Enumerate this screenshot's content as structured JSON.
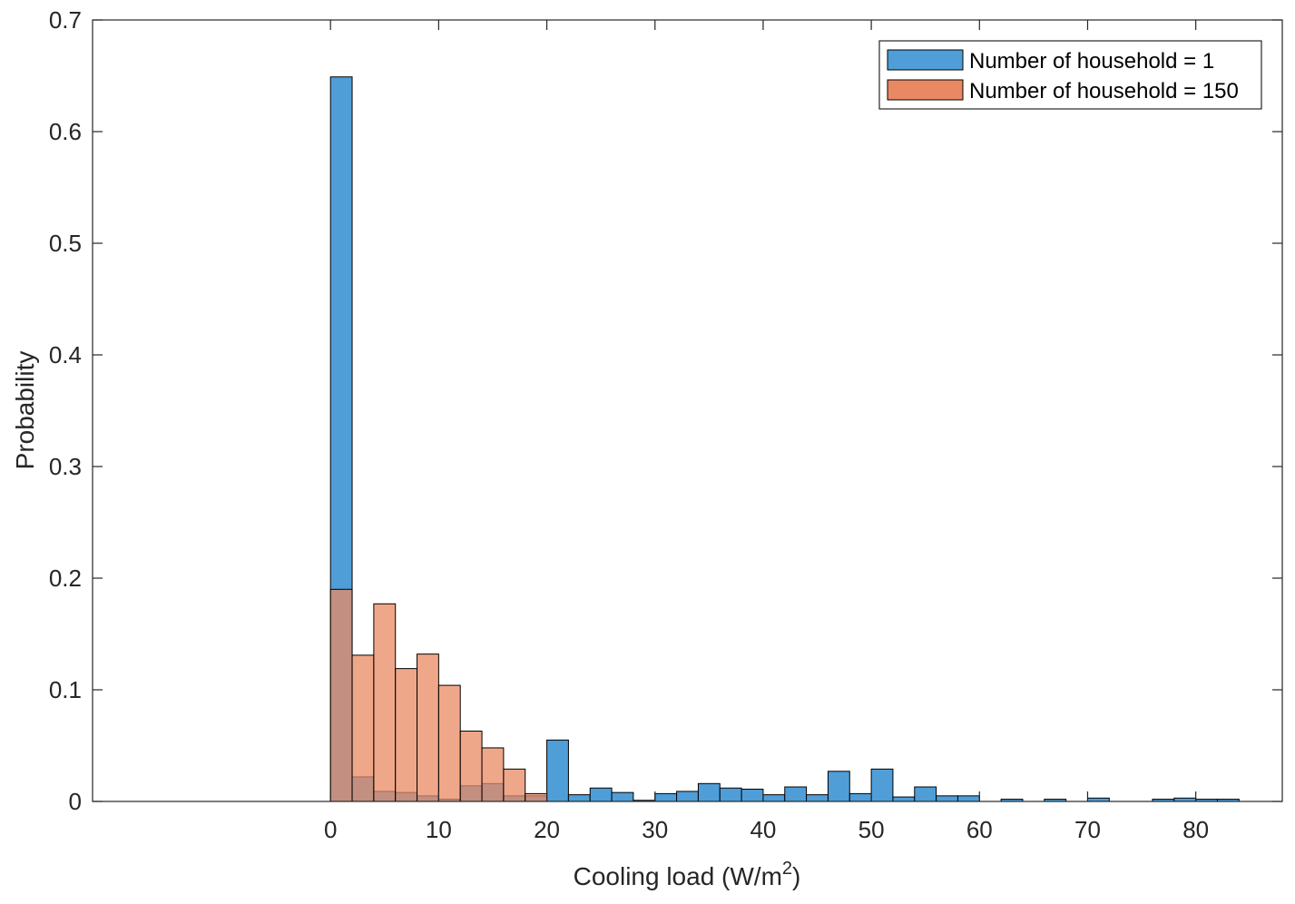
{
  "chart_data": {
    "type": "bar",
    "title": "",
    "xlabel": "Cooling load (W/m",
    "xlabel_superscript": "2",
    "xlabel_suffix": ")",
    "ylabel": "Probability",
    "xlim": [
      -22,
      88
    ],
    "ylim": [
      0,
      0.7
    ],
    "x_ticks": [
      0,
      10,
      20,
      30,
      40,
      50,
      60,
      70,
      80
    ],
    "y_ticks": [
      0,
      0.1,
      0.2,
      0.3,
      0.4,
      0.5,
      0.6,
      0.7
    ],
    "x_tick_labels": [
      "0",
      "10",
      "20",
      "30",
      "40",
      "50",
      "60",
      "70",
      "80"
    ],
    "y_tick_labels": [
      "0",
      "0.1",
      "0.2",
      "0.3",
      "0.4",
      "0.5",
      "0.6",
      "0.7"
    ],
    "bin_width": 2,
    "grid": false,
    "legend_position": "top-right",
    "series": [
      {
        "name": "Number of household = 1",
        "color": "#4f9ed8",
        "bin_starts": [
          0,
          2,
          4,
          6,
          8,
          10,
          12,
          14,
          16,
          18,
          20,
          22,
          24,
          26,
          28,
          30,
          32,
          34,
          36,
          38,
          40,
          42,
          44,
          46,
          48,
          50,
          52,
          54,
          56,
          58,
          60,
          62,
          64,
          66,
          68,
          70,
          72,
          74,
          76,
          78,
          80,
          82
        ],
        "values": [
          0.649,
          0.022,
          0.009,
          0.008,
          0.005,
          0.002,
          0.014,
          0.016,
          0.005,
          0.005,
          0.055,
          0.006,
          0.012,
          0.008,
          0.001,
          0.007,
          0.009,
          0.016,
          0.012,
          0.011,
          0.006,
          0.013,
          0.006,
          0.027,
          0.007,
          0.029,
          0.004,
          0.013,
          0.005,
          0.005,
          0.0,
          0.002,
          0.0,
          0.002,
          0.0,
          0.003,
          0.0,
          0.0,
          0.002,
          0.003,
          0.002,
          0.002
        ]
      },
      {
        "name": "Number of household = 150",
        "color": "#e98963",
        "bin_starts": [
          0,
          2,
          4,
          6,
          8,
          10,
          12,
          14,
          16,
          18
        ],
        "values": [
          0.19,
          0.131,
          0.177,
          0.119,
          0.132,
          0.104,
          0.063,
          0.048,
          0.029,
          0.007
        ]
      }
    ]
  }
}
